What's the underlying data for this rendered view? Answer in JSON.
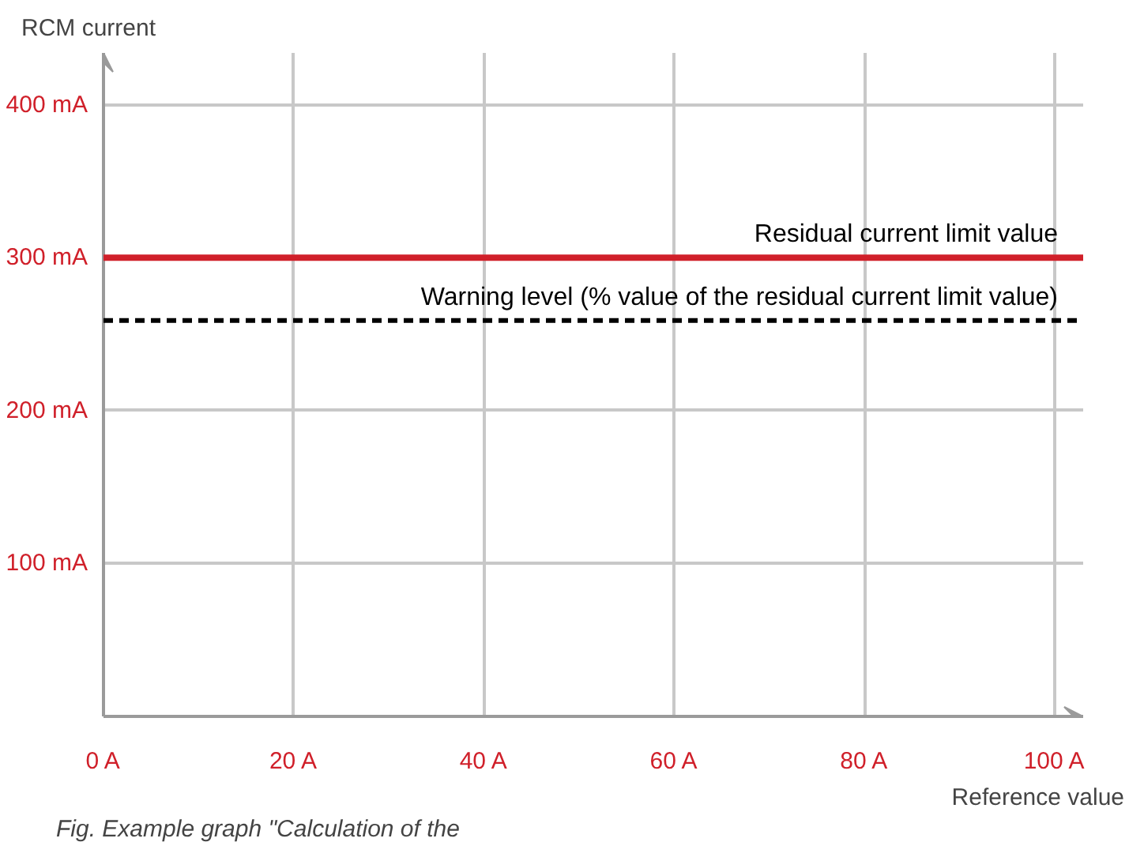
{
  "chart_data": {
    "type": "line",
    "xlabel": "Reference value",
    "ylabel": "RCM current",
    "xlim": [
      0,
      103
    ],
    "ylim": [
      0,
      434
    ],
    "xticks": [
      {
        "value": 0,
        "label": "0 A"
      },
      {
        "value": 20,
        "label": "20 A"
      },
      {
        "value": 40,
        "label": "40 A"
      },
      {
        "value": 60,
        "label": "60 A"
      },
      {
        "value": 80,
        "label": "80 A"
      },
      {
        "value": 100,
        "label": "100 A"
      }
    ],
    "yticks": [
      {
        "value": 100,
        "label": "100 mA"
      },
      {
        "value": 200,
        "label": "200 mA"
      },
      {
        "value": 300,
        "label": "300 mA"
      },
      {
        "value": 400,
        "label": "400 mA"
      }
    ],
    "grid": true,
    "ref_lines": [
      {
        "axis": "y",
        "value": 300,
        "label": "Residual current limit value",
        "color": "#d0202a",
        "line_style": "solid"
      },
      {
        "axis": "y",
        "value": 259,
        "label": "Warning level (% value of the residual current limit value)",
        "color": "#000000",
        "line_style": "dashed"
      }
    ],
    "annotations": [
      "Fig. Example graph \"Calculation of the"
    ]
  }
}
